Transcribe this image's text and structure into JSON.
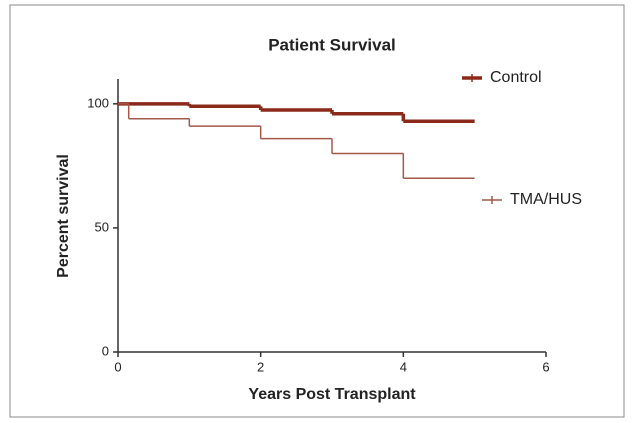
{
  "chart_data": {
    "type": "step",
    "title": "Patient Survival",
    "x_label": "Years Post Transplant",
    "y_label": "Percent survival",
    "xlim": [
      0,
      6
    ],
    "xticks": [
      0,
      2,
      4,
      6
    ],
    "ylim": [
      0,
      110
    ],
    "yticks": [
      0,
      50,
      100
    ],
    "series": [
      {
        "name": "Control",
        "color": "#8b2a1a",
        "x": [
          0,
          1,
          2,
          3,
          4,
          5
        ],
        "values": [
          100,
          99,
          97.5,
          96,
          93,
          93
        ]
      },
      {
        "name": "TMA/HUS",
        "color": "#a3584a",
        "x": [
          0,
          0.15,
          1,
          2,
          3,
          4,
          5
        ],
        "values": [
          100,
          94,
          91,
          86,
          80,
          70,
          70
        ]
      }
    ]
  }
}
